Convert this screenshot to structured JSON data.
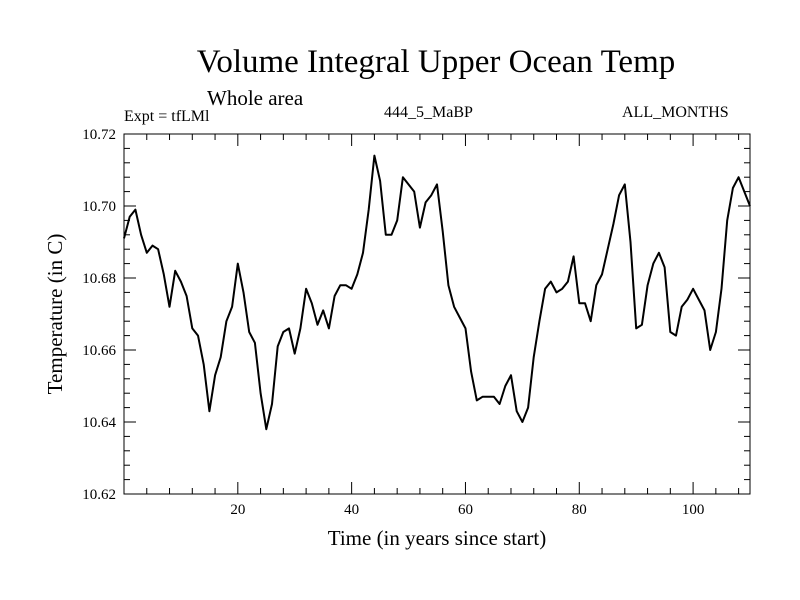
{
  "header": {
    "title": "Volume Integral Upper Ocean Temp",
    "subtitle": "Whole area",
    "experiment": "Expt = tfLMl",
    "run_id": "444_5_MaBP",
    "period": "ALL_MONTHS"
  },
  "chart_data": {
    "type": "line",
    "title": "Volume Integral Upper Ocean Temp",
    "xlabel": "Time (in years since start)",
    "ylabel": "Temperature (in C)",
    "xlim": [
      0,
      110
    ],
    "ylim": [
      10.62,
      10.72
    ],
    "x_ticks": [
      20,
      40,
      60,
      80,
      100
    ],
    "x_tick_labels": [
      "20",
      "40",
      "60",
      "80",
      "100"
    ],
    "y_ticks": [
      10.62,
      10.64,
      10.66,
      10.68,
      10.7,
      10.72
    ],
    "y_tick_labels": [
      "10.62",
      "10.64",
      "10.66",
      "10.68",
      "10.70",
      "10.72"
    ],
    "grid": false,
    "series": [
      {
        "name": "Volume integral upper ocean temperature",
        "color": "#000000",
        "x": [
          0,
          1,
          2,
          3,
          4,
          5,
          6,
          7,
          8,
          9,
          10,
          11,
          12,
          13,
          14,
          15,
          16,
          17,
          18,
          19,
          20,
          21,
          22,
          23,
          24,
          25,
          26,
          27,
          28,
          29,
          30,
          31,
          32,
          33,
          34,
          35,
          36,
          37,
          38,
          39,
          40,
          41,
          42,
          43,
          44,
          45,
          46,
          47,
          48,
          49,
          50,
          51,
          52,
          53,
          54,
          55,
          56,
          57,
          58,
          59,
          60,
          61,
          62,
          63,
          64,
          65,
          66,
          67,
          68,
          69,
          70,
          71,
          72,
          73,
          74,
          75,
          76,
          77,
          78,
          79,
          80,
          81,
          82,
          83,
          84,
          85,
          86,
          87,
          88,
          89,
          90,
          91,
          92,
          93,
          94,
          95,
          96,
          97,
          98,
          99,
          100,
          101,
          102,
          103,
          104,
          105,
          106,
          107,
          108,
          109,
          110
        ],
        "values": [
          10.691,
          10.697,
          10.699,
          10.692,
          10.687,
          10.689,
          10.688,
          10.681,
          10.672,
          10.682,
          10.679,
          10.675,
          10.666,
          10.664,
          10.656,
          10.643,
          10.653,
          10.658,
          10.668,
          10.672,
          10.684,
          10.676,
          10.665,
          10.662,
          10.648,
          10.638,
          10.645,
          10.661,
          10.665,
          10.666,
          10.659,
          10.666,
          10.677,
          10.673,
          10.667,
          10.671,
          10.666,
          10.675,
          10.678,
          10.678,
          10.677,
          10.681,
          10.687,
          10.699,
          10.714,
          10.707,
          10.692,
          10.692,
          10.696,
          10.708,
          10.706,
          10.704,
          10.694,
          10.701,
          10.703,
          10.706,
          10.693,
          10.678,
          10.672,
          10.669,
          10.666,
          10.654,
          10.646,
          10.647,
          10.647,
          10.647,
          10.645,
          10.65,
          10.653,
          10.643,
          10.64,
          10.644,
          10.658,
          10.668,
          10.677,
          10.679,
          10.676,
          10.677,
          10.679,
          10.686,
          10.673,
          10.673,
          10.668,
          10.678,
          10.681,
          10.688,
          10.695,
          10.703,
          10.706,
          10.69,
          10.666,
          10.667,
          10.678,
          10.684,
          10.687,
          10.683,
          10.665,
          10.664,
          10.672,
          10.674,
          10.677,
          10.674,
          10.671,
          10.66,
          10.665,
          10.677,
          10.696,
          10.705,
          10.708,
          10.704,
          10.7
        ]
      }
    ]
  }
}
